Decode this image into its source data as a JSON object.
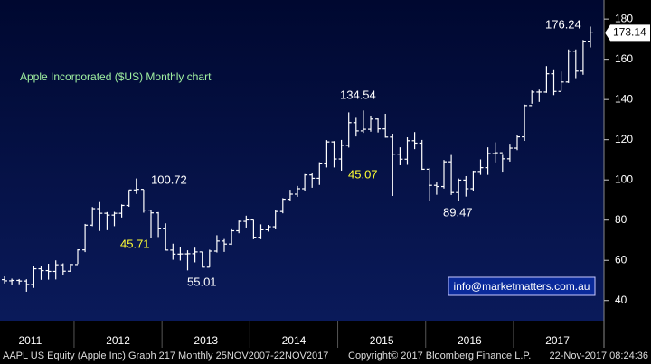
{
  "chart_data": {
    "type": "ohlc",
    "title": "Apple Incorporated ($US) Monthly chart",
    "categories": [
      "2011-03",
      "2011-04",
      "2011-05",
      "2011-06",
      "2011-07",
      "2011-08",
      "2011-09",
      "2011-10",
      "2011-11",
      "2011-12",
      "2012-01",
      "2012-02",
      "2012-03",
      "2012-04",
      "2012-05",
      "2012-06",
      "2012-07",
      "2012-08",
      "2012-09",
      "2012-10",
      "2012-11",
      "2012-12",
      "2013-01",
      "2013-02",
      "2013-03",
      "2013-04",
      "2013-05",
      "2013-06",
      "2013-07",
      "2013-08",
      "2013-09",
      "2013-10",
      "2013-11",
      "2013-12",
      "2014-01",
      "2014-02",
      "2014-03",
      "2014-04",
      "2014-05",
      "2014-06",
      "2014-07",
      "2014-08",
      "2014-09",
      "2014-10",
      "2014-11",
      "2014-12",
      "2015-01",
      "2015-02",
      "2015-03",
      "2015-04",
      "2015-05",
      "2015-06",
      "2015-07",
      "2015-08",
      "2015-09",
      "2015-10",
      "2015-11",
      "2015-12",
      "2016-01",
      "2016-02",
      "2016-03",
      "2016-04",
      "2016-05",
      "2016-06",
      "2016-07",
      "2016-08",
      "2016-09",
      "2016-10",
      "2016-11",
      "2016-12",
      "2017-01",
      "2017-02",
      "2017-03",
      "2017-04",
      "2017-05",
      "2017-06",
      "2017-07",
      "2017-08",
      "2017-09",
      "2017-10",
      "2017-11"
    ],
    "open": [
      50.4,
      49.8,
      50.0,
      49.7,
      48.0,
      55.8,
      54.9,
      54.5,
      57.8,
      54.6,
      57.9,
      65.2,
      77.5,
      85.7,
      83.4,
      82.5,
      83.4,
      87.3,
      95.0,
      95.3,
      85.0,
      83.6,
      76.0,
      65.1,
      63.1,
      63.2,
      63.3,
      64.2,
      56.6,
      64.6,
      69.6,
      68.1,
      74.7,
      79.4,
      80.1,
      71.5,
      75.2,
      76.7,
      84.3,
      90.4,
      92.9,
      95.6,
      102.5,
      100.8,
      108.0,
      118.9,
      110.4,
      117.2,
      128.5,
      124.4,
      125.2,
      130.3,
      125.4,
      121.3,
      112.8,
      110.3,
      119.5,
      118.3,
      105.3,
      97.3,
      96.7,
      109.0,
      93.7,
      99.9,
      95.6,
      104.2,
      106.1,
      113.1,
      113.5,
      110.5,
      115.8,
      121.4,
      137.0,
      143.7,
      143.7,
      152.8,
      144.0,
      148.7,
      164.0,
      154.1,
      169.0
    ],
    "high": [
      52.0,
      50.9,
      50.7,
      50.6,
      57.0,
      57.1,
      58.3,
      60.0,
      58.5,
      58.3,
      65.5,
      78.1,
      86.5,
      89.0,
      84.0,
      84.1,
      87.8,
      95.0,
      100.72,
      95.2,
      85.2,
      84.0,
      78.4,
      68.3,
      66.6,
      65.0,
      66.3,
      64.2,
      65.3,
      72.5,
      70.6,
      75.9,
      79.8,
      82.2,
      80.1,
      77.9,
      77.6,
      85.0,
      90.9,
      95.1,
      97.0,
      102.9,
      103.7,
      108.8,
      119.8,
      119.3,
      119.9,
      133.6,
      130.9,
      134.54,
      132.0,
      130.6,
      132.9,
      123.0,
      116.2,
      121.2,
      123.8,
      119.9,
      105.8,
      98.9,
      109.9,
      112.4,
      100.7,
      101.9,
      104.6,
      110.2,
      116.2,
      118.7,
      112.5,
      118.0,
      122.4,
      137.5,
      144.5,
      144.9,
      156.6,
      155.0,
      153.9,
      164.9,
      164.9,
      169.6,
      176.24
    ],
    "low": [
      48.5,
      47.9,
      48.1,
      44.4,
      46.3,
      50.3,
      50.4,
      50.5,
      52.6,
      54.4,
      58.2,
      64.1,
      77.0,
      74.6,
      75.0,
      77.0,
      81.3,
      86.6,
      93.0,
      83.7,
      71.3,
      71.6,
      65.0,
      60.3,
      59.9,
      55.01,
      59.0,
      56.4,
      56.6,
      63.9,
      64.2,
      67.7,
      73.5,
      76.3,
      70.5,
      70.5,
      74.3,
      75.6,
      83.4,
      89.6,
      91.6,
      94.6,
      96.1,
      97.5,
      106.2,
      106.2,
      104.6,
      116.1,
      121.6,
      123.4,
      124.0,
      123.6,
      121.0,
      92.0,
      107.3,
      107.5,
      115.3,
      105.0,
      89.5,
      92.6,
      95.7,
      92.5,
      89.47,
      91.7,
      94.3,
      102.5,
      102.5,
      108.7,
      104.1,
      109.1,
      114.8,
      119.4,
      137.9,
      138.8,
      143.3,
      142.2,
      144.2,
      148.2,
      150.6,
      152.3,
      165.9
    ],
    "close": [
      49.8,
      50.0,
      49.7,
      48.0,
      55.8,
      54.9,
      54.5,
      57.8,
      54.6,
      57.9,
      65.2,
      77.5,
      85.7,
      83.4,
      82.5,
      83.4,
      87.3,
      95.0,
      95.3,
      85.0,
      83.6,
      76.0,
      65.1,
      63.1,
      63.2,
      63.3,
      64.2,
      56.6,
      64.6,
      69.6,
      68.1,
      74.7,
      79.4,
      80.1,
      71.5,
      75.2,
      76.7,
      84.3,
      90.4,
      92.9,
      95.6,
      102.5,
      100.8,
      108.0,
      118.9,
      110.4,
      117.2,
      128.5,
      124.4,
      125.2,
      130.3,
      125.4,
      121.3,
      112.8,
      110.3,
      119.5,
      118.3,
      105.3,
      97.3,
      96.7,
      109.0,
      93.7,
      99.9,
      95.6,
      104.2,
      106.1,
      113.1,
      113.5,
      110.5,
      115.8,
      121.4,
      137.0,
      143.7,
      143.7,
      152.8,
      144.0,
      148.7,
      164.0,
      154.1,
      169.0,
      173.14
    ],
    "color": "#ffffff",
    "years": [
      "2011",
      "2012",
      "2013",
      "2014",
      "2015",
      "2016",
      "2017"
    ],
    "ylim": [
      30,
      189.5
    ],
    "yticks": [
      40,
      60,
      80,
      100,
      120,
      140,
      160,
      180
    ],
    "last_price": {
      "value": 173.14,
      "label": "173.14"
    },
    "annotations": [
      "100.72",
      "45.71",
      "55.01",
      "134.54",
      "45.07",
      "89.47",
      "176.24"
    ],
    "watermark": "info@marketmatters.com.au",
    "footer": [
      "AAPL US Equity (Apple Inc) Graph 217  Monthly 25NOV2007-22NOV2017",
      "Copyright© 2017 Bloomberg Finance L.P.",
      "22-Nov-2017 08:24:36"
    ]
  }
}
